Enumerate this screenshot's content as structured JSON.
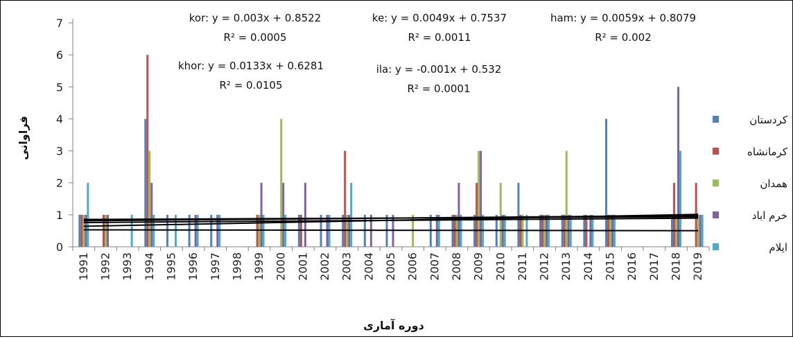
{
  "chart_data": {
    "type": "bar",
    "title": "",
    "xlabel": "دوره آماری",
    "ylabel": "فراوانی",
    "ylim": [
      0,
      7
    ],
    "yticks": [
      0,
      1,
      2,
      3,
      4,
      5,
      6,
      7
    ],
    "grid": false,
    "legend_position": "right",
    "categories": [
      "1991",
      "1992",
      "1993",
      "1994",
      "1995",
      "1996",
      "1997",
      "1998",
      "1999",
      "2000",
      "2001",
      "2002",
      "2003",
      "2004",
      "2005",
      "2006",
      "2007",
      "2008",
      "2009",
      "2010",
      "2011",
      "2012",
      "2013",
      "2014",
      "2015",
      "2016",
      "2017",
      "2018",
      "2019"
    ],
    "series": [
      {
        "name": "کردستان",
        "color": "#4f81bd",
        "values": [
          1,
          0,
          0,
          4,
          1,
          1,
          1,
          0,
          0,
          0,
          1,
          1,
          1,
          1,
          1,
          0,
          1,
          1,
          1,
          1,
          2,
          1,
          1,
          1,
          4,
          0,
          0,
          1,
          0
        ]
      },
      {
        "name": "کرمانشاه",
        "color": "#c0504d",
        "values": [
          1,
          1,
          0,
          6,
          0,
          0,
          0,
          0,
          1,
          0,
          1,
          0,
          3,
          0,
          0,
          0,
          0,
          1,
          2,
          0,
          1,
          1,
          1,
          1,
          1,
          0,
          0,
          2,
          2
        ]
      },
      {
        "name": "همدان",
        "color": "#9bbb59",
        "values": [
          1,
          1,
          0,
          3,
          0,
          0,
          0,
          0,
          1,
          4,
          0,
          0,
          1,
          0,
          0,
          1,
          0,
          1,
          3,
          2,
          1,
          1,
          3,
          0,
          1,
          0,
          0,
          1,
          1
        ]
      },
      {
        "name": "خرم اباد",
        "color": "#8064a2",
        "values": [
          1,
          1,
          0,
          2,
          0,
          1,
          1,
          0,
          2,
          2,
          2,
          1,
          1,
          1,
          1,
          0,
          1,
          2,
          3,
          1,
          0,
          1,
          1,
          1,
          1,
          0,
          0,
          5,
          1
        ]
      },
      {
        "name": "ایلام",
        "color": "#4bacc6",
        "values": [
          2,
          0,
          1,
          1,
          1,
          1,
          1,
          0,
          1,
          1,
          0,
          1,
          2,
          0,
          0,
          0,
          1,
          1,
          1,
          1,
          1,
          1,
          1,
          1,
          1,
          0,
          0,
          3,
          1
        ]
      }
    ],
    "annotations": [
      {
        "name": "kor",
        "line1": "kor: y = 0.003x + 0.8522",
        "line2": "R² = 0.0005",
        "slope": 0.003,
        "intercept": 0.8522
      },
      {
        "name": "ke",
        "line1": "ke: y = 0.0049x + 0.7537",
        "line2": "R² = 0.0011",
        "slope": 0.0049,
        "intercept": 0.7537
      },
      {
        "name": "ham",
        "line1": "ham: y = 0.0059x + 0.8079",
        "line2": "R² = 0.002",
        "slope": 0.0059,
        "intercept": 0.8079
      },
      {
        "name": "khor",
        "line1": "khor: y = 0.0133x + 0.6281",
        "line2": "R² = 0.0105",
        "slope": 0.0133,
        "intercept": 0.6281
      },
      {
        "name": "ila",
        "line1": "ila: y = -0.001x + 0.532",
        "line2": "R² = 0.0001",
        "slope": -0.001,
        "intercept": 0.532
      }
    ]
  }
}
